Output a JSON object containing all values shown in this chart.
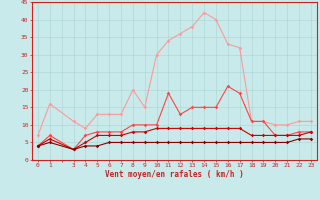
{
  "x_labels": [
    "0",
    "1",
    "",
    "3",
    "4",
    "5",
    "6",
    "7",
    "8",
    "9",
    "10",
    "11",
    "12",
    "13",
    "14",
    "15",
    "16",
    "17",
    "18",
    "19",
    "20",
    "21",
    "22",
    "23"
  ],
  "x_vals": [
    0,
    1,
    2,
    3,
    4,
    5,
    6,
    7,
    8,
    9,
    10,
    11,
    12,
    13,
    14,
    15,
    16,
    17,
    18,
    19,
    20,
    21,
    22,
    23
  ],
  "line1_color": "#FF9999",
  "line2_color": "#FF4444",
  "line3_color": "#CC0000",
  "line4_color": "#880000",
  "line1_y": [
    7,
    16,
    null,
    11,
    9,
    13,
    13,
    13,
    20,
    15,
    30,
    34,
    36,
    38,
    42,
    40,
    33,
    32,
    11,
    11,
    10,
    10,
    11,
    11
  ],
  "line2_y": [
    4,
    7,
    null,
    3,
    7,
    8,
    8,
    8,
    10,
    10,
    10,
    19,
    13,
    15,
    15,
    15,
    21,
    19,
    11,
    11,
    7,
    7,
    8,
    8
  ],
  "line3_y": [
    4,
    6,
    null,
    3,
    5,
    7,
    7,
    7,
    8,
    8,
    9,
    9,
    9,
    9,
    9,
    9,
    9,
    9,
    7,
    7,
    7,
    7,
    7,
    8
  ],
  "line4_y": [
    4,
    5,
    null,
    3,
    4,
    4,
    5,
    5,
    5,
    5,
    5,
    5,
    5,
    5,
    5,
    5,
    5,
    5,
    5,
    5,
    5,
    5,
    6,
    6
  ],
  "ylim": [
    0,
    45
  ],
  "yticks": [
    0,
    5,
    10,
    15,
    20,
    25,
    30,
    35,
    40,
    45
  ],
  "xlabel": "Vent moyen/en rafales ( km/h )",
  "bg_color": "#c8eaea",
  "grid_color": "#aad4d4",
  "spine_color": "#cc2222",
  "tick_color": "#cc2222",
  "arrow_chars": [
    "↗",
    "↗",
    "",
    "→",
    "↗",
    "↑",
    "→",
    "→",
    "→",
    "→",
    "→",
    "↗",
    "↗",
    "→",
    "→",
    "→",
    "→",
    "→",
    "→",
    "↗",
    "→",
    "→",
    "→",
    "↘"
  ]
}
